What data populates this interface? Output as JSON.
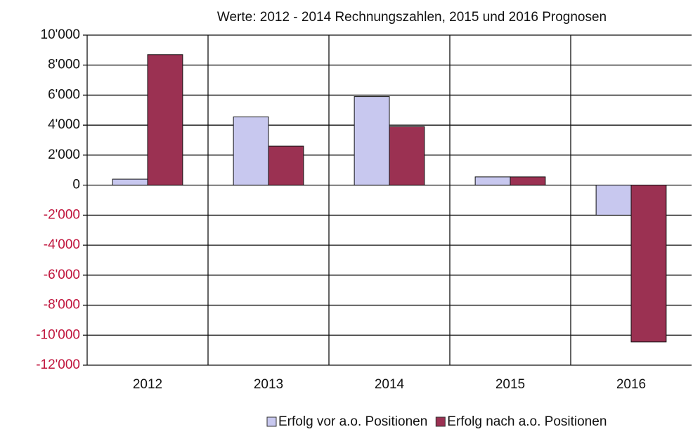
{
  "chart_data": {
    "type": "bar",
    "title": "Werte: 2012 - 2014 Rechnungszahlen,  2015 und 2016 Prognosen",
    "categories": [
      "2012",
      "2013",
      "2014",
      "2015",
      "2016"
    ],
    "series": [
      {
        "name": "Erfolg vor a.o. Positionen",
        "color": "#c8c8ef",
        "values": [
          400,
          4550,
          5900,
          550,
          -2000
        ]
      },
      {
        "name": "Erfolg nach a.o. Positionen",
        "color": "#9b3152",
        "values": [
          8700,
          2600,
          3900,
          550,
          -10450
        ]
      }
    ],
    "ylim": [
      -12000,
      10000
    ],
    "yticks": [
      {
        "value": -12000,
        "label": "-12'000"
      },
      {
        "value": -10000,
        "label": "-10'000"
      },
      {
        "value": -8000,
        "label": "-8'000"
      },
      {
        "value": -6000,
        "label": "-6'000"
      },
      {
        "value": -4000,
        "label": "-4'000"
      },
      {
        "value": -2000,
        "label": "-2'000"
      },
      0,
      {
        "value": 2000,
        "label": "2'000"
      },
      {
        "value": 4000,
        "label": "4'000"
      },
      {
        "value": 6000,
        "label": "6'000"
      },
      {
        "value": 8000,
        "label": "8'000"
      },
      {
        "value": 10000,
        "label": "10'000"
      }
    ],
    "negative_label_color": "#c0143c",
    "grid": true,
    "legend": "bottom"
  }
}
